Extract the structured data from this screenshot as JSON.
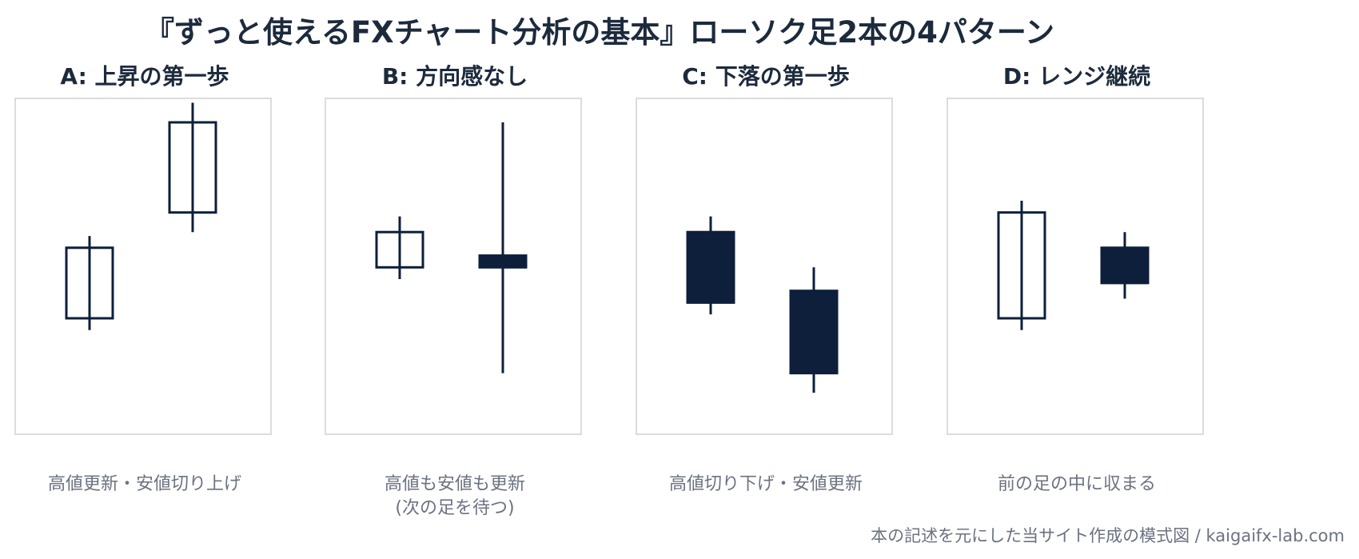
{
  "title": "『ずっと使えるFXチャート分析の基本』ローソク足2本の4パターン",
  "colors": {
    "candle": "#0d1f3a",
    "frame": "#dcdcdc",
    "text": "#1c2a3c",
    "muted": "#6b7280"
  },
  "panels": [
    {
      "title": "A: 上昇の第一歩",
      "caption": "高値更新・安値切り上げ",
      "caption2": "",
      "candles": [
        {
          "open": 40,
          "close": 58,
          "high": 61,
          "low": 37,
          "filled": false
        },
        {
          "open": 67,
          "close": 90,
          "high": 95,
          "low": 62,
          "filled": false
        }
      ]
    },
    {
      "title": "B: 方向感なし",
      "caption": "高値も安値も更新",
      "caption2": "(次の足を待つ)",
      "candles": [
        {
          "open": 53,
          "close": 62,
          "high": 66,
          "low": 50,
          "filled": false
        },
        {
          "open": 56,
          "close": 53,
          "high": 90,
          "low": 26,
          "filled": true
        }
      ]
    },
    {
      "title": "C: 下落の第一歩",
      "caption": "高値切り下げ・安値更新",
      "caption2": "",
      "candles": [
        {
          "open": 62,
          "close": 44,
          "high": 66,
          "low": 41,
          "filled": true
        },
        {
          "open": 47,
          "close": 26,
          "high": 53,
          "low": 21,
          "filled": true
        }
      ]
    },
    {
      "title": "D: レンジ継続",
      "caption": "前の足の中に収まる",
      "caption2": "",
      "candles": [
        {
          "open": 40,
          "close": 67,
          "high": 70,
          "low": 37,
          "filled": false
        },
        {
          "open": 58,
          "close": 49,
          "high": 62,
          "low": 45,
          "filled": true
        }
      ]
    }
  ],
  "footer": "本の記述を元にした当サイト作成の模式図 / kaigaifx-lab.com"
}
